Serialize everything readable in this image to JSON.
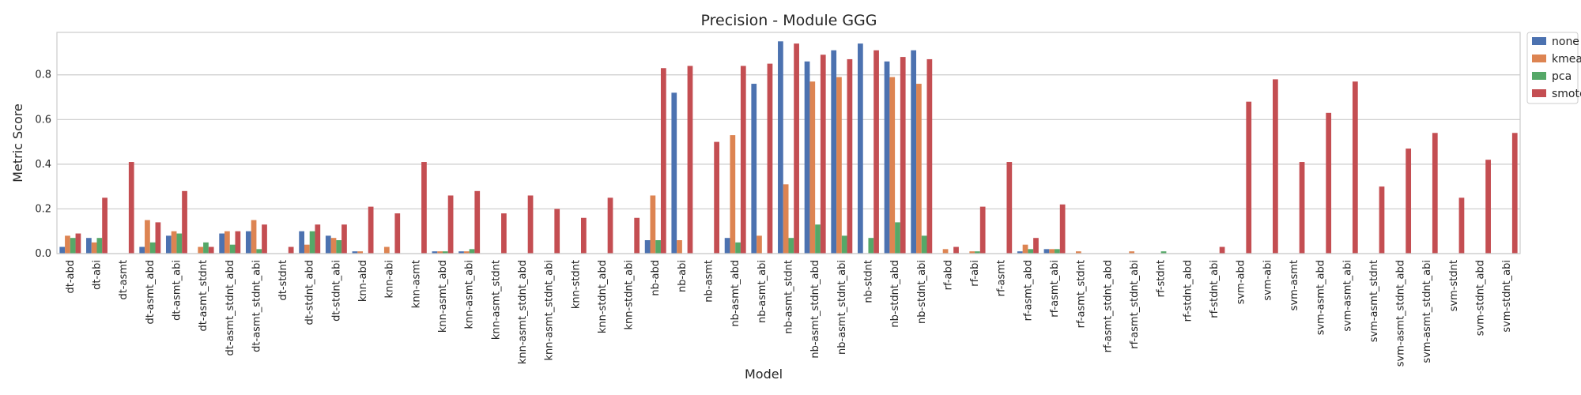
{
  "chart_data": {
    "type": "bar",
    "title": "Precision - Module GGG",
    "xlabel": "Model",
    "ylabel": "Metric Score",
    "ylim": [
      0,
      0.99
    ],
    "yticks": [
      "0.0",
      "0.2",
      "0.4",
      "0.6",
      "0.8"
    ],
    "grid": true,
    "legend_position": "outside-top-right",
    "categories": [
      "dt-abd",
      "dt-abi",
      "dt-asmt",
      "dt-asmt_abd",
      "dt-asmt_abi",
      "dt-asmt_stdnt",
      "dt-asmt_stdnt_abd",
      "dt-asmt_stdnt_abi",
      "dt-stdnt",
      "dt-stdnt_abd",
      "dt-stdnt_abi",
      "knn-abd",
      "knn-abi",
      "knn-asmt",
      "knn-asmt_abd",
      "knn-asmt_abi",
      "knn-asmt_stdnt",
      "knn-asmt_stdnt_abd",
      "knn-asmt_stdnt_abi",
      "knn-stdnt",
      "knn-stdnt_abd",
      "knn-stdnt_abi",
      "nb-abd",
      "nb-abi",
      "nb-asmt",
      "nb-asmt_abd",
      "nb-asmt_abi",
      "nb-asmt_stdnt",
      "nb-asmt_stdnt_abd",
      "nb-asmt_stdnt_abi",
      "nb-stdnt",
      "nb-stdnt_abd",
      "nb-stdnt_abi",
      "rf-abd",
      "rf-abi",
      "rf-asmt",
      "rf-asmt_abd",
      "rf-asmt_abi",
      "rf-asmt_stdnt",
      "rf-asmt_stdnt_abd",
      "rf-asmt_stdnt_abi",
      "rf-stdnt",
      "rf-stdnt_abd",
      "rf-stdnt_abi",
      "svm-abd",
      "svm-abi",
      "svm-asmt",
      "svm-asmt_abd",
      "svm-asmt_abi",
      "svm-asmt_stdnt",
      "svm-asmt_stdnt_abd",
      "svm-asmt_stdnt_abi",
      "svm-stdnt",
      "svm-stdnt_abd",
      "svm-stdnt_abi"
    ],
    "series": [
      {
        "name": "none",
        "color": "#4c72b0",
        "values": [
          0.03,
          0.07,
          0,
          0.03,
          0.08,
          0,
          0.09,
          0.1,
          0,
          0.1,
          0.08,
          0.01,
          0,
          0,
          0.01,
          0.01,
          0,
          0,
          0,
          0,
          0,
          0,
          0.06,
          0.72,
          0,
          0.07,
          0.76,
          0.95,
          0.86,
          0.91,
          0.94,
          0.86,
          0.91,
          0,
          0,
          0,
          0.01,
          0.02,
          0,
          0,
          0,
          0,
          0,
          0,
          0,
          0,
          0,
          0,
          0,
          0,
          0,
          0,
          0,
          0,
          0
        ]
      },
      {
        "name": "kmeans",
        "color": "#dd8452",
        "values": [
          0.08,
          0.05,
          0,
          0.15,
          0.1,
          0.03,
          0.1,
          0.15,
          0,
          0.04,
          0.07,
          0.01,
          0.03,
          0,
          0.01,
          0.01,
          0,
          0,
          0,
          0,
          0,
          0,
          0.26,
          0.06,
          0,
          0.53,
          0.08,
          0.31,
          0.77,
          0.79,
          0,
          0.79,
          0.76,
          0.02,
          0.01,
          0,
          0.04,
          0.02,
          0.01,
          0,
          0.01,
          0,
          0,
          0,
          0,
          0,
          0,
          0,
          0,
          0,
          0,
          0,
          0,
          0,
          0
        ]
      },
      {
        "name": "pca",
        "color": "#55a868",
        "values": [
          0.07,
          0.07,
          0,
          0.05,
          0.09,
          0.05,
          0.04,
          0.02,
          0,
          0.1,
          0.06,
          0,
          0,
          0,
          0.01,
          0.02,
          0,
          0,
          0,
          0,
          0,
          0,
          0.06,
          0,
          0,
          0.05,
          0,
          0.07,
          0.13,
          0.08,
          0.07,
          0.14,
          0.08,
          0,
          0.01,
          0,
          0.02,
          0.02,
          0,
          0,
          0,
          0.01,
          0,
          0,
          0,
          0,
          0,
          0,
          0,
          0,
          0,
          0,
          0,
          0,
          0
        ]
      },
      {
        "name": "smote",
        "color": "#c44e52",
        "values": [
          0.09,
          0.25,
          0.41,
          0.14,
          0.28,
          0.03,
          0.1,
          0.13,
          0.03,
          0.13,
          0.13,
          0.21,
          0.18,
          0.41,
          0.26,
          0.28,
          0.18,
          0.26,
          0.2,
          0.16,
          0.25,
          0.16,
          0.83,
          0.84,
          0.5,
          0.84,
          0.85,
          0.94,
          0.89,
          0.87,
          0.91,
          0.88,
          0.87,
          0.03,
          0.21,
          0.41,
          0.07,
          0.22,
          0,
          0,
          0,
          0,
          0,
          0.03,
          0.68,
          0.78,
          0.41,
          0.63,
          0.77,
          0.3,
          0.47,
          0.54,
          0.25,
          0.42,
          0.54
        ]
      }
    ]
  }
}
